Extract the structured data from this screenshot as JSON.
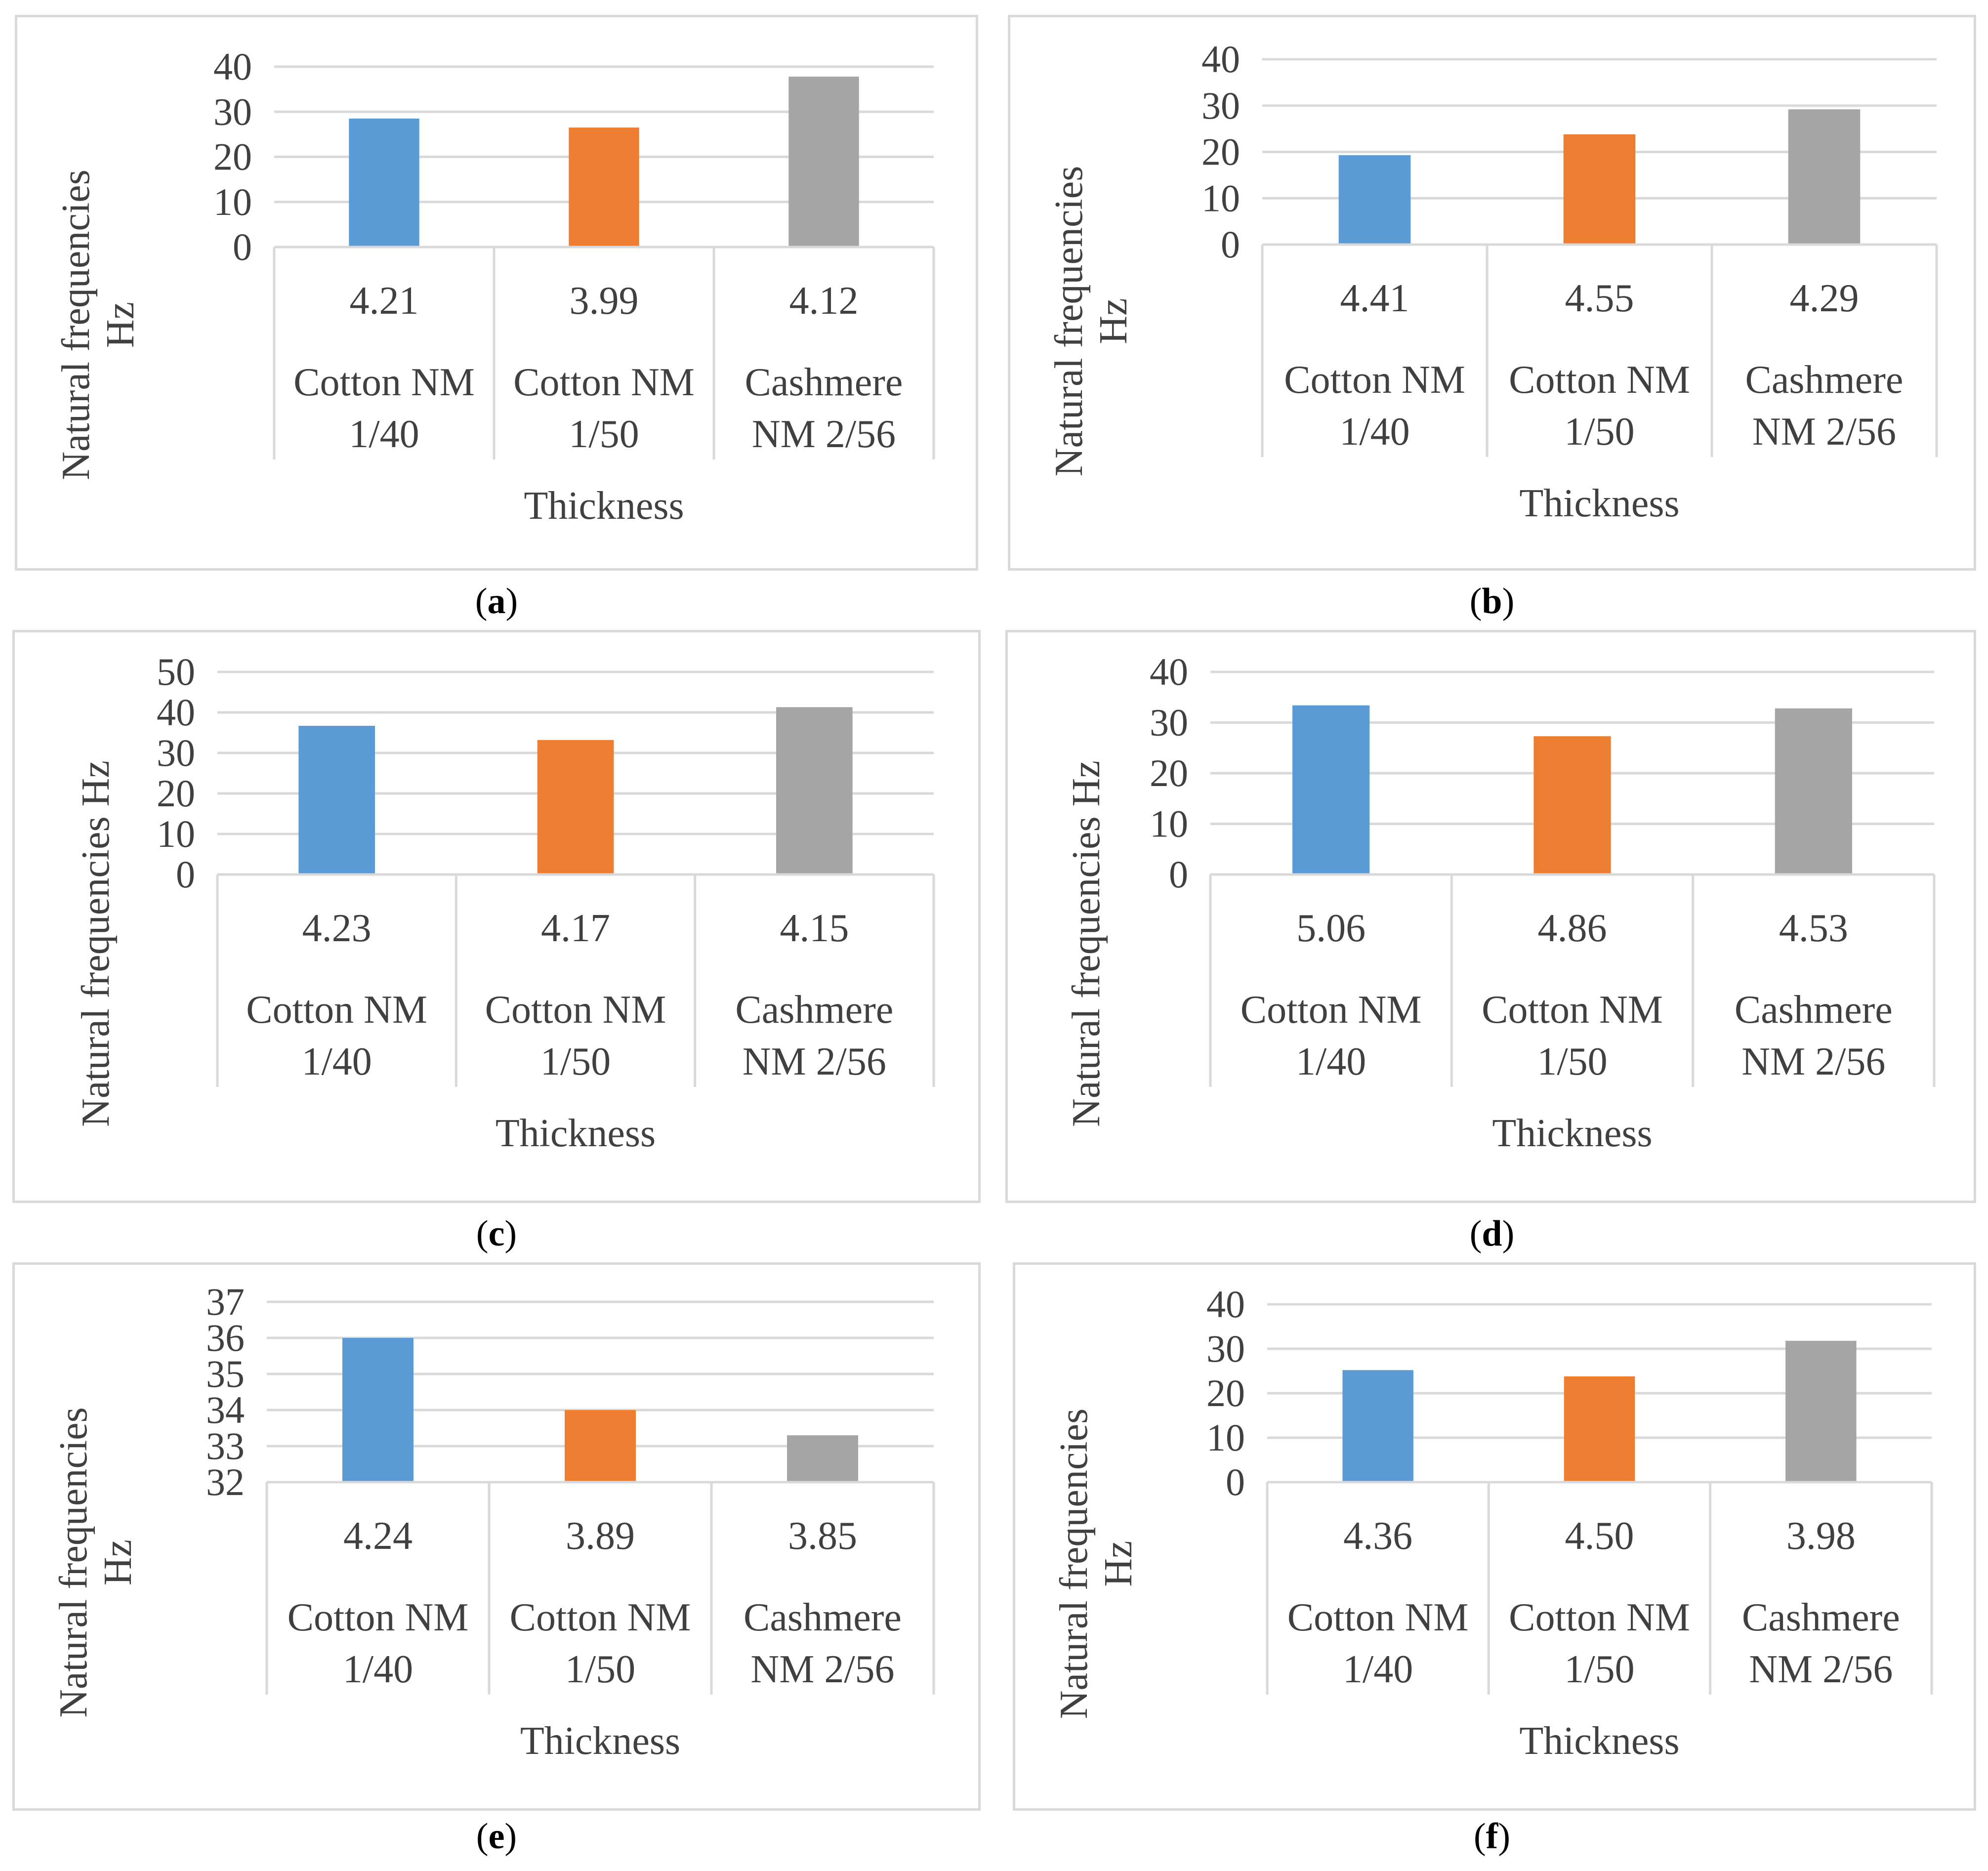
{
  "colors": {
    "series": [
      "#5b9bd5",
      "#ed7d31",
      "#a5a5a5"
    ],
    "grid": "#d9d9d9",
    "text": "#404040"
  },
  "chart_data": [
    {
      "panel": "a",
      "type": "bar",
      "ylabel": "Natural frequencies Hz",
      "ylabel_lines": [
        "Natural frequencies",
        "Hz"
      ],
      "xlabel": "Thickness",
      "ylim": [
        0,
        40
      ],
      "yticks": [
        "0",
        "10",
        "20",
        "30",
        "40"
      ],
      "categories": [
        {
          "value_label": "4.21",
          "lines": [
            "Cotton NM",
            "1/40"
          ]
        },
        {
          "value_label": "3.99",
          "lines": [
            "Cotton NM",
            "1/50"
          ]
        },
        {
          "value_label": "4.12",
          "lines": [
            "Cashmere",
            "NM  2/56"
          ]
        }
      ],
      "values": [
        28.5,
        26.5,
        37.8
      ]
    },
    {
      "panel": "b",
      "type": "bar",
      "ylabel": "Natural frequencies Hz",
      "ylabel_lines": [
        "Natural frequencies",
        "Hz"
      ],
      "xlabel": "Thickness",
      "ylim": [
        0,
        40
      ],
      "yticks": [
        "0",
        "10",
        "20",
        "30",
        "40"
      ],
      "categories": [
        {
          "value_label": "4.41",
          "lines": [
            "Cotton NM",
            "1/40"
          ]
        },
        {
          "value_label": "4.55",
          "lines": [
            "Cotton NM",
            "1/50"
          ]
        },
        {
          "value_label": "4.29",
          "lines": [
            "Cashmere",
            "NM  2/56"
          ]
        }
      ],
      "values": [
        19.3,
        23.8,
        29.2
      ]
    },
    {
      "panel": "c",
      "type": "bar",
      "ylabel": "Natural frequencies Hz",
      "ylabel_lines": [
        "Natural frequencies Hz"
      ],
      "xlabel": "Thickness",
      "ylim": [
        0,
        50
      ],
      "yticks": [
        "0",
        "10",
        "20",
        "30",
        "40",
        "50"
      ],
      "categories": [
        {
          "value_label": "4.23",
          "lines": [
            "Cotton NM",
            "1/40"
          ]
        },
        {
          "value_label": "4.17",
          "lines": [
            "Cotton NM",
            "1/50"
          ]
        },
        {
          "value_label": "4.15",
          "lines": [
            "Cashmere",
            "NM  2/56"
          ]
        }
      ],
      "values": [
        36.7,
        33.2,
        41.3
      ]
    },
    {
      "panel": "d",
      "type": "bar",
      "ylabel": "Natural frequencies Hz",
      "ylabel_lines": [
        "Natural frequencies Hz"
      ],
      "xlabel": "Thickness",
      "ylim": [
        0,
        40
      ],
      "yticks": [
        "0",
        "10",
        "20",
        "30",
        "40"
      ],
      "categories": [
        {
          "value_label": "5.06",
          "lines": [
            "Cotton NM",
            "1/40"
          ]
        },
        {
          "value_label": "4.86",
          "lines": [
            "Cotton NM",
            "1/50"
          ]
        },
        {
          "value_label": "4.53",
          "lines": [
            "Cashmere",
            "NM  2/56"
          ]
        }
      ],
      "values": [
        33.4,
        27.3,
        32.8
      ]
    },
    {
      "panel": "e",
      "type": "bar",
      "ylabel": "Natural frequencies Hz",
      "ylabel_lines": [
        "Natural frequencies",
        "Hz"
      ],
      "xlabel": "Thickness",
      "ylim": [
        32,
        37
      ],
      "yticks": [
        "32",
        "33",
        "34",
        "35",
        "36",
        "37"
      ],
      "categories": [
        {
          "value_label": "4.24",
          "lines": [
            "Cotton NM",
            "1/40"
          ]
        },
        {
          "value_label": "3.89",
          "lines": [
            "Cotton NM",
            "1/50"
          ]
        },
        {
          "value_label": "3.85",
          "lines": [
            "Cashmere",
            "NM  2/56"
          ]
        }
      ],
      "values": [
        36.0,
        34.0,
        33.3
      ]
    },
    {
      "panel": "f",
      "type": "bar",
      "ylabel": "Natural frequencies Hz",
      "ylabel_lines": [
        "Natural frequencies",
        "Hz"
      ],
      "xlabel": "Thickness",
      "ylim": [
        0,
        40
      ],
      "yticks": [
        "0",
        "10",
        "20",
        "30",
        "40"
      ],
      "categories": [
        {
          "value_label": "4.36",
          "lines": [
            "Cotton NM",
            "1/40"
          ]
        },
        {
          "value_label": "4.50",
          "lines": [
            "Cotton NM",
            "1/50"
          ]
        },
        {
          "value_label": "3.98",
          "lines": [
            "Cashmere",
            "NM  2/56"
          ]
        }
      ],
      "values": [
        25.2,
        23.8,
        31.8
      ]
    }
  ],
  "captions": [
    "a",
    "b",
    "c",
    "d",
    "e",
    "f"
  ]
}
